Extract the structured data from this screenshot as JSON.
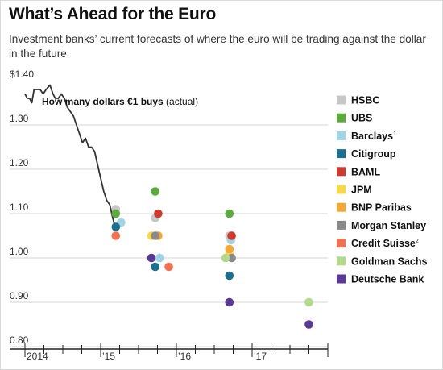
{
  "header": {
    "title": "What’s Ahead for the Euro",
    "subtitle": "Investment banks’ current forecasts of where the euro will be trading against the dollar in the future"
  },
  "chart_data": {
    "type": "scatter",
    "title": "What’s Ahead for the Euro",
    "subtitle": "Investment banks’ current forecasts of where the euro will be trading against the dollar in the future",
    "ylabel": "",
    "ylim": [
      0.8,
      1.4
    ],
    "y_ticks": [
      {
        "value": 1.4,
        "label": "$1.40"
      },
      {
        "value": 1.3,
        "label": "1.30"
      },
      {
        "value": 1.2,
        "label": "1.20"
      },
      {
        "value": 1.1,
        "label": "1.10"
      },
      {
        "value": 1.0,
        "label": "1.00"
      },
      {
        "value": 0.9,
        "label": "0.90"
      },
      {
        "value": 0.8,
        "label": "0.80"
      }
    ],
    "xlim": [
      2014.0,
      2018.0
    ],
    "x_ticks": [
      {
        "value": 2014.0,
        "label": "2014"
      },
      {
        "value": 2015.0,
        "label": "’15"
      },
      {
        "value": 2016.0,
        "label": "’16"
      },
      {
        "value": 2017.0,
        "label": "’17"
      }
    ],
    "grid": true,
    "legend": "right",
    "annotation": {
      "bold": "How many dollars €1 buys",
      "normal": " (actual)"
    },
    "actual": {
      "name": "How many dollars €1 buys",
      "color": "#333333",
      "points": [
        [
          2014.0,
          1.37
        ],
        [
          2014.03,
          1.36
        ],
        [
          2014.06,
          1.36
        ],
        [
          2014.09,
          1.35
        ],
        [
          2014.12,
          1.38
        ],
        [
          2014.16,
          1.38
        ],
        [
          2014.2,
          1.38
        ],
        [
          2014.24,
          1.37
        ],
        [
          2014.28,
          1.38
        ],
        [
          2014.33,
          1.39
        ],
        [
          2014.37,
          1.37
        ],
        [
          2014.4,
          1.36
        ],
        [
          2014.44,
          1.36
        ],
        [
          2014.48,
          1.37
        ],
        [
          2014.52,
          1.36
        ],
        [
          2014.56,
          1.34
        ],
        [
          2014.6,
          1.33
        ],
        [
          2014.64,
          1.32
        ],
        [
          2014.68,
          1.3
        ],
        [
          2014.72,
          1.28
        ],
        [
          2014.76,
          1.26
        ],
        [
          2014.8,
          1.27
        ],
        [
          2014.84,
          1.25
        ],
        [
          2014.88,
          1.25
        ],
        [
          2014.92,
          1.24
        ],
        [
          2014.96,
          1.21
        ],
        [
          2015.0,
          1.18
        ],
        [
          2015.04,
          1.15
        ],
        [
          2015.08,
          1.13
        ],
        [
          2015.12,
          1.12
        ],
        [
          2015.16,
          1.09
        ],
        [
          2015.19,
          1.07
        ]
      ]
    },
    "series": [
      {
        "name": "HSBC",
        "color": "#c7c7c7",
        "points": [
          [
            2015.2,
            1.11
          ],
          [
            2015.72,
            1.09
          ],
          [
            2016.7,
            1.05
          ]
        ]
      },
      {
        "name": "UBS",
        "color": "#5aaa3c",
        "points": [
          [
            2015.2,
            1.1
          ],
          [
            2015.72,
            1.15
          ],
          [
            2016.7,
            1.1
          ]
        ]
      },
      {
        "name": "Barclays",
        "note": "1",
        "color": "#9fd3e6",
        "points": [
          [
            2015.27,
            1.08
          ],
          [
            2015.78,
            1.0
          ],
          [
            2016.72,
            1.04
          ]
        ]
      },
      {
        "name": "Citigroup",
        "color": "#1b6f8f",
        "points": [
          [
            2015.2,
            1.07
          ],
          [
            2015.72,
            0.98
          ],
          [
            2016.7,
            0.96
          ]
        ]
      },
      {
        "name": "BAML",
        "color": "#cc3b2e",
        "points": [
          [
            2015.76,
            1.1
          ],
          [
            2016.73,
            1.05
          ]
        ]
      },
      {
        "name": "JPM",
        "color": "#f7d84a",
        "points": [
          [
            2015.67,
            1.05
          ],
          [
            2016.7,
            1.01
          ]
        ]
      },
      {
        "name": "BNP Paribas",
        "color": "#f4a637",
        "points": [
          [
            2015.76,
            1.05
          ],
          [
            2016.7,
            1.02
          ]
        ]
      },
      {
        "name": "Morgan Stanley",
        "color": "#8a8a8a",
        "points": [
          [
            2015.72,
            1.05
          ],
          [
            2016.73,
            1.0
          ]
        ]
      },
      {
        "name": "Credit Suisse",
        "note": "2",
        "color": "#f07250",
        "points": [
          [
            2015.2,
            1.05
          ],
          [
            2015.9,
            0.98
          ]
        ]
      },
      {
        "name": "Goldman Sachs",
        "color": "#b3d98c",
        "points": [
          [
            2016.65,
            1.0
          ],
          [
            2017.75,
            0.9
          ]
        ]
      },
      {
        "name": "Deutsche Bank",
        "color": "#5b3a96",
        "points": [
          [
            2015.67,
            1.0
          ],
          [
            2016.7,
            0.9
          ],
          [
            2017.75,
            0.85
          ]
        ]
      }
    ]
  }
}
